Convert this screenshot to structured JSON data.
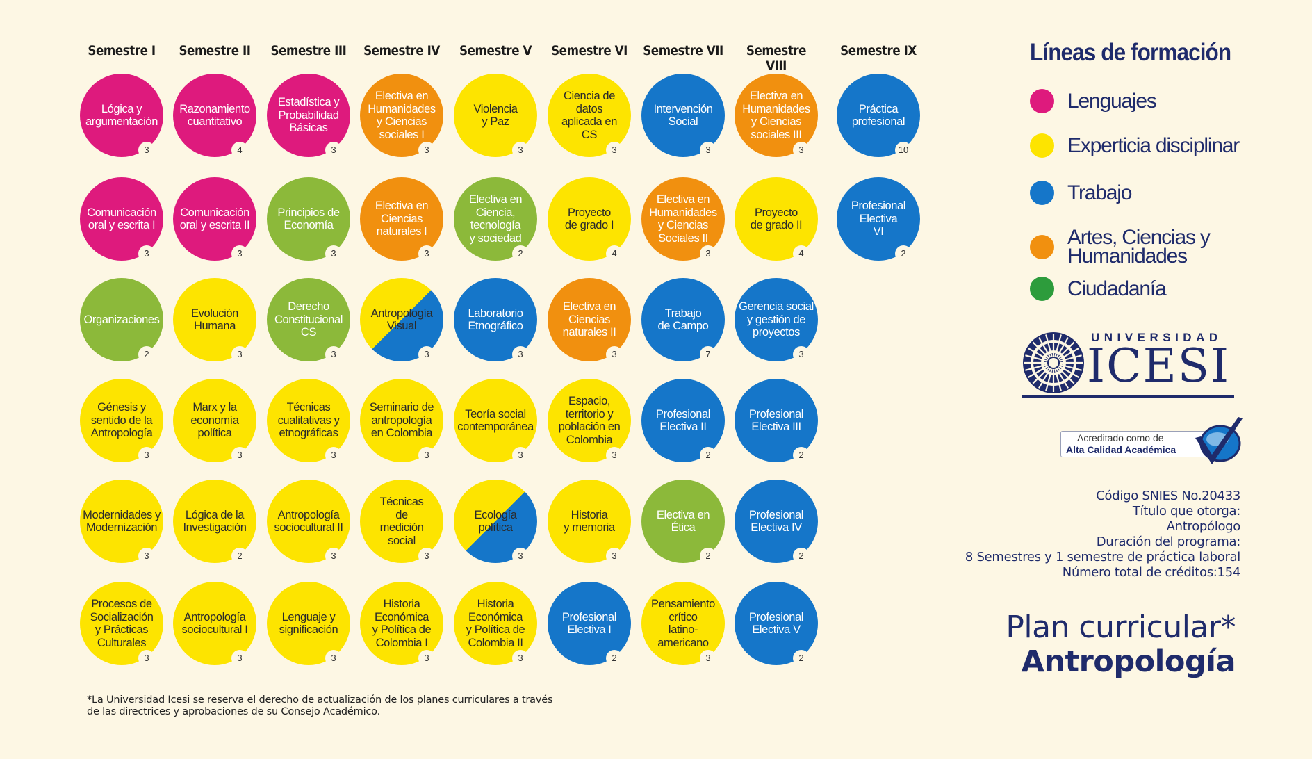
{
  "semesters": [
    "Semestre I",
    "Semestre II",
    "Semestre III",
    "Semestre IV",
    "Semestre V",
    "Semestre VI",
    "Semestre VII",
    "Semestre VIII",
    "Semestre IX"
  ],
  "colors": {
    "magenta": "#de1a7d",
    "yellow": "#fde400",
    "blue": "#1576c9",
    "orange": "#f1900f",
    "green": "#8cb93a",
    "dark_blue": "#1f2b6b"
  },
  "courses": [
    {
      "col": 0,
      "row": 0,
      "name": "Lógica y\nargumentación",
      "credits": "3",
      "color": "magenta"
    },
    {
      "col": 0,
      "row": 1,
      "name": "Comunicación\noral y escrita I",
      "credits": "3",
      "color": "magenta"
    },
    {
      "col": 0,
      "row": 2,
      "name": "Organizaciones",
      "credits": "2",
      "color": "green"
    },
    {
      "col": 0,
      "row": 3,
      "name": "Génesis y\nsentido de la\nAntropología",
      "credits": "3",
      "color": "yellow"
    },
    {
      "col": 0,
      "row": 4,
      "name": "Modernidades y\nModernización",
      "credits": "3",
      "color": "yellow"
    },
    {
      "col": 0,
      "row": 5,
      "name": "Procesos de\nSocialización\ny Prácticas\nCulturales",
      "credits": "3",
      "color": "yellow"
    },
    {
      "col": 1,
      "row": 0,
      "name": "Razonamiento\ncuantitativo",
      "credits": "4",
      "color": "magenta"
    },
    {
      "col": 1,
      "row": 1,
      "name": "Comunicación\noral y escrita II",
      "credits": "3",
      "color": "magenta"
    },
    {
      "col": 1,
      "row": 2,
      "name": "Evolución\nHumana",
      "credits": "3",
      "color": "yellow"
    },
    {
      "col": 1,
      "row": 3,
      "name": "Marx y la\neconomía\npolítica",
      "credits": "3",
      "color": "yellow"
    },
    {
      "col": 1,
      "row": 4,
      "name": "Lógica de la\nInvestigación",
      "credits": "2",
      "color": "yellow"
    },
    {
      "col": 1,
      "row": 5,
      "name": "Antropología\nsociocultural I",
      "credits": "3",
      "color": "yellow"
    },
    {
      "col": 2,
      "row": 0,
      "name": "Estadística y\nProbabilidad\nBásicas",
      "credits": "3",
      "color": "magenta"
    },
    {
      "col": 2,
      "row": 1,
      "name": "Principios de\nEconomía",
      "credits": "3",
      "color": "green"
    },
    {
      "col": 2,
      "row": 2,
      "name": "Derecho\nConstitucional\nCS",
      "credits": "3",
      "color": "green"
    },
    {
      "col": 2,
      "row": 3,
      "name": "Técnicas\ncualitativas y\netnográficas",
      "credits": "3",
      "color": "yellow"
    },
    {
      "col": 2,
      "row": 4,
      "name": "Antropología\nsociocultural II",
      "credits": "3",
      "color": "yellow"
    },
    {
      "col": 2,
      "row": 5,
      "name": "Lenguaje y\nsignificación",
      "credits": "3",
      "color": "yellow"
    },
    {
      "col": 3,
      "row": 0,
      "name": "Electiva en\nHumanidades\ny Ciencias\nsociales I",
      "credits": "3",
      "color": "orange"
    },
    {
      "col": 3,
      "row": 1,
      "name": "Electiva en\nCiencias\nnaturales I",
      "credits": "3",
      "color": "orange"
    },
    {
      "col": 3,
      "row": 2,
      "name": "Antropología\nVisual",
      "credits": "3",
      "color": "split"
    },
    {
      "col": 3,
      "row": 3,
      "name": "Seminario de\nantropología\nen Colombia",
      "credits": "3",
      "color": "yellow"
    },
    {
      "col": 3,
      "row": 4,
      "name": "Técnicas\nde\nmedición\nsocial",
      "credits": "3",
      "color": "yellow"
    },
    {
      "col": 3,
      "row": 5,
      "name": "Historia\nEconómica\ny Política de\nColombia I",
      "credits": "3",
      "color": "yellow"
    },
    {
      "col": 4,
      "row": 0,
      "name": "Violencia\ny Paz",
      "credits": "3",
      "color": "yellow"
    },
    {
      "col": 4,
      "row": 1,
      "name": "Electiva en\nCiencia,\ntecnología\ny sociedad",
      "credits": "2",
      "color": "green"
    },
    {
      "col": 4,
      "row": 2,
      "name": "Laboratorio\nEtnográfico",
      "credits": "3",
      "color": "blue"
    },
    {
      "col": 4,
      "row": 3,
      "name": "Teoría social\ncontemporánea",
      "credits": "3",
      "color": "yellow"
    },
    {
      "col": 4,
      "row": 4,
      "name": "Ecología\npolítica",
      "credits": "3",
      "color": "split"
    },
    {
      "col": 4,
      "row": 5,
      "name": "Historia\nEconómica\ny Política de\nColombia II",
      "credits": "3",
      "color": "yellow"
    },
    {
      "col": 5,
      "row": 0,
      "name": "Ciencia de\ndatos\naplicada en\nCS",
      "credits": "3",
      "color": "yellow"
    },
    {
      "col": 5,
      "row": 1,
      "name": "Proyecto\nde grado I",
      "credits": "4",
      "color": "yellow"
    },
    {
      "col": 5,
      "row": 2,
      "name": "Electiva en\nCiencias\nnaturales II",
      "credits": "3",
      "color": "orange"
    },
    {
      "col": 5,
      "row": 3,
      "name": "Espacio,\nterritorio y\npoblación en\nColombia",
      "credits": "3",
      "color": "yellow"
    },
    {
      "col": 5,
      "row": 4,
      "name": "Historia\ny memoria",
      "credits": "3",
      "color": "yellow"
    },
    {
      "col": 5,
      "row": 5,
      "name": "Profesional\nElectiva I",
      "credits": "2",
      "color": "blue"
    },
    {
      "col": 6,
      "row": 0,
      "name": "Intervención\nSocial",
      "credits": "3",
      "color": "blue"
    },
    {
      "col": 6,
      "row": 1,
      "name": "Electiva  en\nHumanidades\ny Ciencias\nSociales II",
      "credits": "3",
      "color": "orange"
    },
    {
      "col": 6,
      "row": 2,
      "name": "Trabajo\nde Campo",
      "credits": "7",
      "color": "blue"
    },
    {
      "col": 6,
      "row": 3,
      "name": "Profesional\nElectiva II",
      "credits": "2",
      "color": "blue"
    },
    {
      "col": 6,
      "row": 4,
      "name": "Electiva  en\nÉtica",
      "credits": "2",
      "color": "green"
    },
    {
      "col": 6,
      "row": 5,
      "name": "Pensamiento\ncrítico\nlatino-\namericano",
      "credits": "3",
      "color": "yellow"
    },
    {
      "col": 7,
      "row": 0,
      "name": "Electiva en\nHumanidades\ny Ciencias\nsociales III",
      "credits": "3",
      "color": "orange"
    },
    {
      "col": 7,
      "row": 1,
      "name": "Proyecto\nde grado II",
      "credits": "4",
      "color": "yellow"
    },
    {
      "col": 7,
      "row": 2,
      "name": "Gerencia social\ny gestión de\nproyectos",
      "credits": "3",
      "color": "blue"
    },
    {
      "col": 7,
      "row": 3,
      "name": "Profesional\nElectiva III",
      "credits": "2",
      "color": "blue"
    },
    {
      "col": 7,
      "row": 4,
      "name": "Profesional\nElectiva IV",
      "credits": "2",
      "color": "blue"
    },
    {
      "col": 7,
      "row": 5,
      "name": "Profesional\nElectiva V",
      "credits": "2",
      "color": "blue"
    },
    {
      "col": 8,
      "row": 0,
      "name": "Práctica\nprofesional",
      "credits": "10",
      "color": "blue"
    },
    {
      "col": 8,
      "row": 1,
      "name": "Profesional\nElectiva\nVI",
      "credits": "2",
      "color": "blue"
    }
  ],
  "legend": {
    "title": "Líneas de formación",
    "items": [
      {
        "label": "Lenguajes",
        "color": "#de1a7d"
      },
      {
        "label": "Experticia disciplinar",
        "color": "#fde400"
      },
      {
        "label": "Trabajo",
        "color": "#1576c9"
      },
      {
        "label": "Artes, Ciencias y\nHumanidades",
        "color": "#f1900f"
      },
      {
        "label": "Ciudadanía",
        "color": "#2d9c3c"
      }
    ]
  },
  "logo": {
    "university": "UNIVERSIDAD",
    "name": "ICESI"
  },
  "accreditation": {
    "line1": "Acreditado como de",
    "line2": "Alta Calidad Académica"
  },
  "info": [
    "Código SNIES No.20433",
    "Título que otorga:",
    "Antropólogo",
    "Duración del programa:",
    "8 Semestres y 1 semestre de práctica laboral",
    "Número total de créditos:154"
  ],
  "plan": {
    "title": "Plan curricular*",
    "subtitle": "Antropología"
  },
  "footnote": {
    "line1": "*La Universidad Icesi se reserva el derecho de actualización de los planes curriculares a través",
    "line2": "de las directrices y aprobaciones de su Consejo Académico."
  }
}
